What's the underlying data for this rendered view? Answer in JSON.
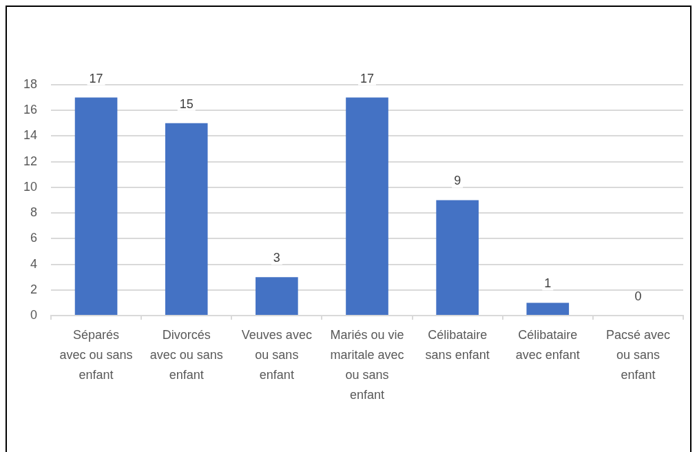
{
  "chart_data": {
    "type": "bar",
    "categories": [
      "Séparés avec ou sans enfant",
      "Divorcés avec ou sans enfant",
      "Veuves avec ou sans enfant",
      "Mariés ou vie maritale avec ou sans enfant",
      "Célibataire sans enfant",
      "Célibataire avec enfant",
      "Pacsé avec ou sans enfant"
    ],
    "values": [
      17,
      15,
      3,
      17,
      9,
      1,
      0
    ],
    "color": "#4472c4",
    "ylim": [
      0,
      18
    ],
    "yticks": [
      0,
      2,
      4,
      6,
      8,
      10,
      12,
      14,
      16,
      18
    ],
    "grid": "y",
    "data_labels": true
  }
}
